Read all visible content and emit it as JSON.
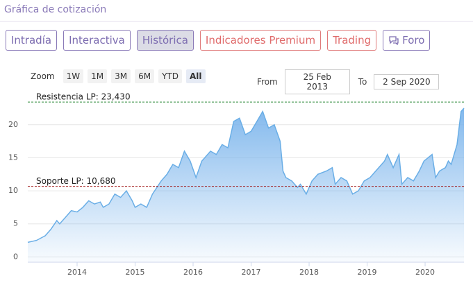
{
  "header": {
    "title": "Gráfica de cotización"
  },
  "tabs": [
    "Intradía",
    "Interactiva",
    "Histórica",
    "Indicadores Premium",
    "Trading",
    "Foro"
  ],
  "zoom": {
    "label": "Zoom",
    "buttons": [
      "1W",
      "1M",
      "3M",
      "6M",
      "YTD",
      "All"
    ]
  },
  "range": {
    "from_label": "From",
    "from": "25 Feb 2013",
    "to_label": "To",
    "to": "2 Sep 2020"
  },
  "chart_data": {
    "type": "area",
    "color": "#6aaee6",
    "grid": true,
    "x": [
      2013.15,
      2013.3,
      2013.45,
      2013.55,
      2013.65,
      2013.7,
      2013.8,
      2013.9,
      2014.0,
      2014.1,
      2014.2,
      2014.3,
      2014.4,
      2014.45,
      2014.55,
      2014.65,
      2014.75,
      2014.85,
      2014.95,
      2015.0,
      2015.1,
      2015.2,
      2015.3,
      2015.45,
      2015.55,
      2015.65,
      2015.75,
      2015.85,
      2015.95,
      2016.05,
      2016.15,
      2016.3,
      2016.4,
      2016.5,
      2016.6,
      2016.7,
      2016.8,
      2016.9,
      2017.0,
      2017.1,
      2017.2,
      2017.3,
      2017.4,
      2017.5,
      2017.55,
      2017.6,
      2017.7,
      2017.8,
      2017.85,
      2017.95,
      2018.05,
      2018.15,
      2018.3,
      2018.4,
      2018.45,
      2018.55,
      2018.65,
      2018.75,
      2018.85,
      2018.95,
      2019.05,
      2019.2,
      2019.3,
      2019.35,
      2019.45,
      2019.55,
      2019.6,
      2019.7,
      2019.8,
      2019.9,
      2019.98,
      2020.05,
      2020.12,
      2020.18,
      2020.25,
      2020.35,
      2020.4,
      2020.45,
      2020.55,
      2020.62,
      2020.67
    ],
    "values": [
      2.2,
      2.5,
      3.2,
      4.2,
      5.5,
      5.0,
      6.0,
      7.0,
      6.8,
      7.5,
      8.5,
      8.0,
      8.3,
      7.5,
      8.0,
      9.5,
      9.0,
      10.0,
      8.5,
      7.5,
      8.0,
      7.5,
      9.5,
      11.5,
      12.5,
      14.0,
      13.5,
      16.0,
      14.5,
      12.0,
      14.5,
      16.0,
      15.5,
      17.0,
      16.5,
      20.5,
      21.0,
      18.5,
      19.0,
      20.5,
      22.0,
      19.5,
      20.0,
      17.5,
      13.0,
      12.0,
      11.5,
      10.5,
      11.0,
      9.5,
      11.5,
      12.5,
      13.0,
      13.5,
      11.0,
      12.0,
      11.5,
      9.5,
      10.0,
      11.5,
      12.0,
      13.5,
      14.5,
      15.5,
      13.5,
      15.5,
      11.0,
      12.0,
      11.5,
      13.0,
      14.5,
      15.0,
      15.5,
      12.0,
      13.0,
      13.5,
      14.5,
      14.0,
      17.0,
      22.0,
      22.5
    ],
    "xlim": [
      2013.15,
      2020.67
    ],
    "xticks": [
      2014,
      2015,
      2016,
      2017,
      2018,
      2019,
      2020
    ],
    "ylim": [
      -0.8,
      24.7
    ],
    "yticks": [
      0,
      5,
      10,
      15,
      20
    ],
    "reference_lines": [
      {
        "label": "Resistencia LP: 23,430",
        "value": 23.43,
        "color": "#2e8b3a"
      },
      {
        "label": "Soporte LP: 10,680",
        "value": 10.68,
        "color": "#a01818"
      }
    ]
  }
}
